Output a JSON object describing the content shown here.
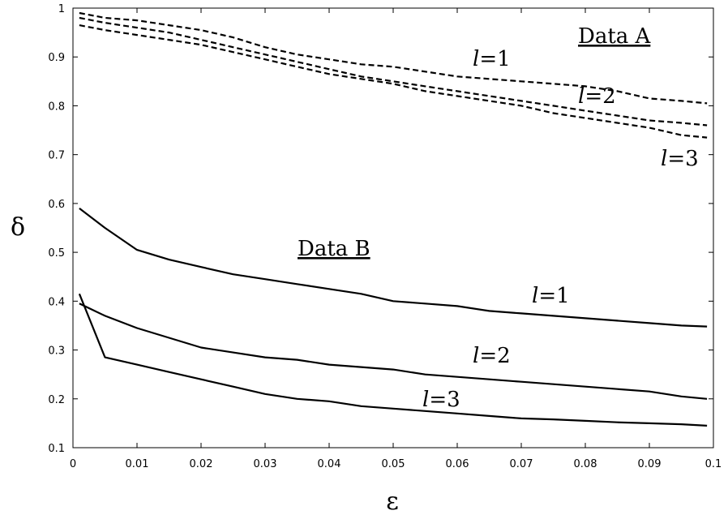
{
  "chart_data": {
    "type": "line",
    "xlabel": "ε",
    "ylabel": "δ",
    "xlim": [
      0,
      0.1
    ],
    "ylim": [
      0.1,
      1.0
    ],
    "x_ticks": [
      {
        "value": 0,
        "label": "0"
      },
      {
        "value": 0.01,
        "label": "0.01"
      },
      {
        "value": 0.02,
        "label": "0.02"
      },
      {
        "value": 0.03,
        "label": "0.03"
      },
      {
        "value": 0.04,
        "label": "0.04"
      },
      {
        "value": 0.05,
        "label": "0.05"
      },
      {
        "value": 0.06,
        "label": "0.06"
      },
      {
        "value": 0.07,
        "label": "0.07"
      },
      {
        "value": 0.08,
        "label": "0.08"
      },
      {
        "value": 0.09,
        "label": "0.09"
      },
      {
        "value": 0.1,
        "label": "0.1"
      }
    ],
    "y_ticks": [
      {
        "value": 0.1,
        "label": "0.1"
      },
      {
        "value": 0.2,
        "label": "0.2"
      },
      {
        "value": 0.3,
        "label": "0.3"
      },
      {
        "value": 0.4,
        "label": "0.4"
      },
      {
        "value": 0.5,
        "label": "0.5"
      },
      {
        "value": 0.6,
        "label": "0.6"
      },
      {
        "value": 0.7,
        "label": "0.7"
      },
      {
        "value": 0.8,
        "label": "0.8"
      },
      {
        "value": 0.9,
        "label": "0.9"
      },
      {
        "value": 1.0,
        "label": "1"
      }
    ],
    "grid": false,
    "x": [
      0.001,
      0.005,
      0.01,
      0.015,
      0.02,
      0.025,
      0.03,
      0.035,
      0.04,
      0.045,
      0.05,
      0.055,
      0.06,
      0.065,
      0.07,
      0.075,
      0.08,
      0.085,
      0.09,
      0.095,
      0.099
    ],
    "series": [
      {
        "group": "Data A",
        "style": "dashed",
        "values": [
          0.99,
          0.98,
          0.975,
          0.965,
          0.955,
          0.94,
          0.92,
          0.905,
          0.895,
          0.885,
          0.88,
          0.87,
          0.86,
          0.855,
          0.85,
          0.845,
          0.84,
          0.83,
          0.815,
          0.81,
          0.805
        ]
      },
      {
        "group": "Data A",
        "style": "dashed",
        "values": [
          0.98,
          0.97,
          0.96,
          0.95,
          0.935,
          0.92,
          0.905,
          0.89,
          0.875,
          0.86,
          0.85,
          0.84,
          0.83,
          0.82,
          0.81,
          0.8,
          0.79,
          0.78,
          0.77,
          0.765,
          0.76
        ]
      },
      {
        "group": "Data A",
        "style": "dashed",
        "values": [
          0.965,
          0.955,
          0.945,
          0.935,
          0.925,
          0.91,
          0.895,
          0.88,
          0.865,
          0.855,
          0.845,
          0.83,
          0.82,
          0.81,
          0.8,
          0.785,
          0.775,
          0.765,
          0.755,
          0.74,
          0.735
        ]
      },
      {
        "group": "Data B",
        "style": "solid",
        "values": [
          0.59,
          0.55,
          0.505,
          0.485,
          0.47,
          0.455,
          0.445,
          0.435,
          0.425,
          0.415,
          0.4,
          0.395,
          0.39,
          0.38,
          0.375,
          0.37,
          0.365,
          0.36,
          0.355,
          0.35,
          0.348
        ]
      },
      {
        "group": "Data B",
        "style": "solid",
        "values": [
          0.395,
          0.37,
          0.345,
          0.325,
          0.305,
          0.295,
          0.285,
          0.28,
          0.27,
          0.265,
          0.26,
          0.25,
          0.245,
          0.24,
          0.235,
          0.23,
          0.225,
          0.22,
          0.215,
          0.205,
          0.2
        ]
      },
      {
        "group": "Data B",
        "style": "solid",
        "values": [
          0.415,
          0.285,
          0.27,
          0.255,
          0.24,
          0.225,
          0.21,
          0.2,
          0.195,
          0.185,
          0.18,
          0.175,
          0.17,
          0.165,
          0.16,
          0.158,
          0.155,
          0.152,
          0.15,
          0.148,
          0.145
        ]
      }
    ],
    "annotations": [
      {
        "text": "Data A",
        "kind": "group"
      },
      {
        "text": "Data B",
        "kind": "group"
      },
      {
        "prefix": "l",
        "text": "=1",
        "kind": "series"
      },
      {
        "prefix": "l",
        "text": "=2",
        "kind": "series"
      },
      {
        "prefix": "l",
        "text": "=3",
        "kind": "series"
      },
      {
        "prefix": "l",
        "text": "=1",
        "kind": "series"
      },
      {
        "prefix": "l",
        "text": "=2",
        "kind": "series"
      },
      {
        "prefix": "l",
        "text": "=3",
        "kind": "series"
      }
    ]
  }
}
